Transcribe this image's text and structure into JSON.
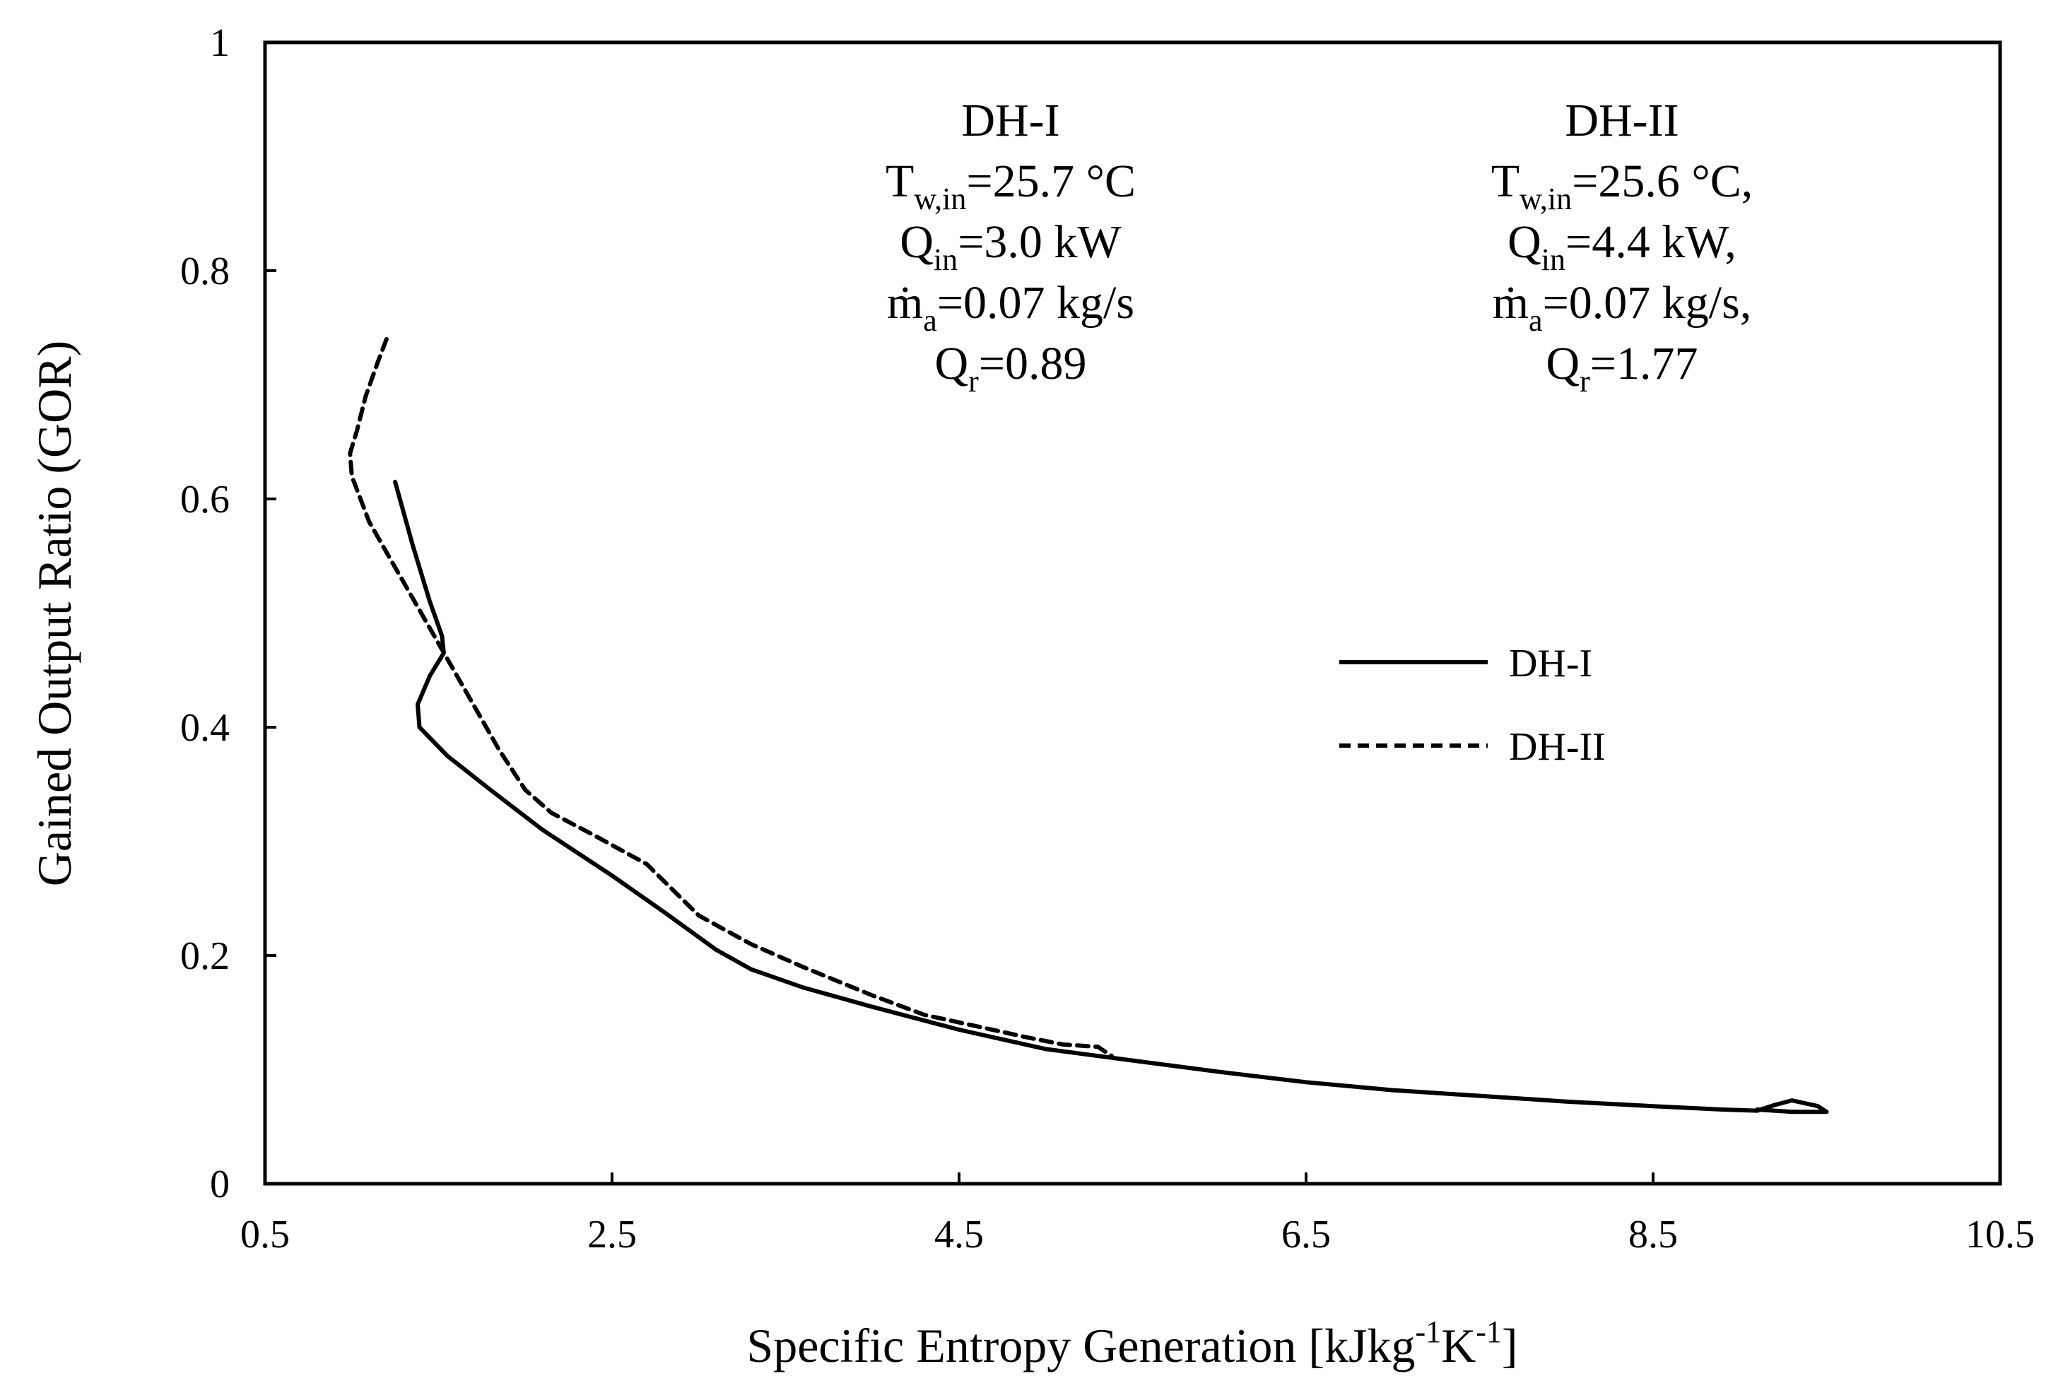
{
  "chart_data": {
    "type": "line",
    "title": "",
    "xlabel": {
      "main": "Specific Entropy Generation [kJkg",
      "sup1": "-1",
      "mid": "K",
      "sup2": "-1",
      "end": "]"
    },
    "ylabel": "Gained Output Ratio (GOR)",
    "xlim": [
      0.5,
      10.5
    ],
    "ylim": [
      0,
      1
    ],
    "xticks": [
      0.5,
      2.5,
      4.5,
      6.5,
      8.5,
      10.5
    ],
    "xtick_labels": [
      "0.5",
      "2.5",
      "4.5",
      "6.5",
      "8.5",
      "10.5"
    ],
    "yticks": [
      0,
      0.2,
      0.4,
      0.6,
      0.8,
      1
    ],
    "ytick_labels": [
      "0",
      "0.2",
      "0.4",
      "0.6",
      "0.8",
      "1"
    ],
    "grid": false,
    "legend_position": "center-right",
    "series": [
      {
        "name": "DH-I",
        "style": "solid",
        "points": [
          [
            1.25,
            0.615
          ],
          [
            1.35,
            0.56
          ],
          [
            1.45,
            0.51
          ],
          [
            1.52,
            0.48
          ],
          [
            1.53,
            0.465
          ],
          [
            1.45,
            0.445
          ],
          [
            1.38,
            0.42
          ],
          [
            1.39,
            0.4
          ],
          [
            1.55,
            0.375
          ],
          [
            1.8,
            0.345
          ],
          [
            2.1,
            0.31
          ],
          [
            2.5,
            0.27
          ],
          [
            2.8,
            0.238
          ],
          [
            3.1,
            0.205
          ],
          [
            3.3,
            0.188
          ],
          [
            3.6,
            0.172
          ],
          [
            4.0,
            0.155
          ],
          [
            4.5,
            0.135
          ],
          [
            5.0,
            0.118
          ],
          [
            5.5,
            0.108
          ],
          [
            6.0,
            0.098
          ],
          [
            6.5,
            0.089
          ],
          [
            7.0,
            0.082
          ],
          [
            7.5,
            0.077
          ],
          [
            8.0,
            0.072
          ],
          [
            8.5,
            0.068
          ],
          [
            8.9,
            0.065
          ],
          [
            9.1,
            0.064
          ],
          [
            9.2,
            0.069
          ],
          [
            9.3,
            0.073
          ],
          [
            9.45,
            0.068
          ],
          [
            9.5,
            0.063
          ],
          [
            9.3,
            0.063
          ],
          [
            9.1,
            0.065
          ]
        ]
      },
      {
        "name": "DH-II",
        "style": "dashed",
        "points": [
          [
            1.2,
            0.74
          ],
          [
            1.15,
            0.72
          ],
          [
            1.08,
            0.69
          ],
          [
            1.03,
            0.66
          ],
          [
            0.99,
            0.64
          ],
          [
            1.0,
            0.62
          ],
          [
            1.1,
            0.58
          ],
          [
            1.25,
            0.54
          ],
          [
            1.4,
            0.5
          ],
          [
            1.55,
            0.46
          ],
          [
            1.7,
            0.42
          ],
          [
            1.85,
            0.38
          ],
          [
            2.0,
            0.345
          ],
          [
            2.15,
            0.325
          ],
          [
            2.4,
            0.305
          ],
          [
            2.7,
            0.28
          ],
          [
            3.0,
            0.235
          ],
          [
            3.3,
            0.21
          ],
          [
            3.6,
            0.19
          ],
          [
            4.0,
            0.165
          ],
          [
            4.3,
            0.148
          ],
          [
            4.6,
            0.138
          ],
          [
            4.9,
            0.128
          ],
          [
            5.1,
            0.122
          ],
          [
            5.3,
            0.12
          ],
          [
            5.35,
            0.115
          ],
          [
            5.38,
            0.112
          ]
        ]
      }
    ],
    "annotations": [
      {
        "name": "dh1",
        "heading": "DH-I",
        "lines": [
          {
            "base": "T",
            "sub": "w,in",
            "rest": "=25.7 °C"
          },
          {
            "base": "Q",
            "sub": "in",
            "rest": "=3.0 kW"
          },
          {
            "base": "ṁ",
            "sub": "a",
            "rest": "=0.07 kg/s"
          },
          {
            "base": "Q",
            "sub": "r",
            "rest": "=0.89"
          }
        ]
      },
      {
        "name": "dh2",
        "heading": "DH-II",
        "lines": [
          {
            "base": "T",
            "sub": "w,in",
            "rest": "=25.6 °C,"
          },
          {
            "base": "Q",
            "sub": "in",
            "rest": "=4.4 kW,"
          },
          {
            "base": "ṁ",
            "sub": "a",
            "rest": "=0.07 kg/s,"
          },
          {
            "base": "Q",
            "sub": "r",
            "rest": "=1.77"
          }
        ]
      }
    ]
  },
  "colors": {
    "line": "#000000",
    "frame": "#000000",
    "background": "#ffffff"
  }
}
